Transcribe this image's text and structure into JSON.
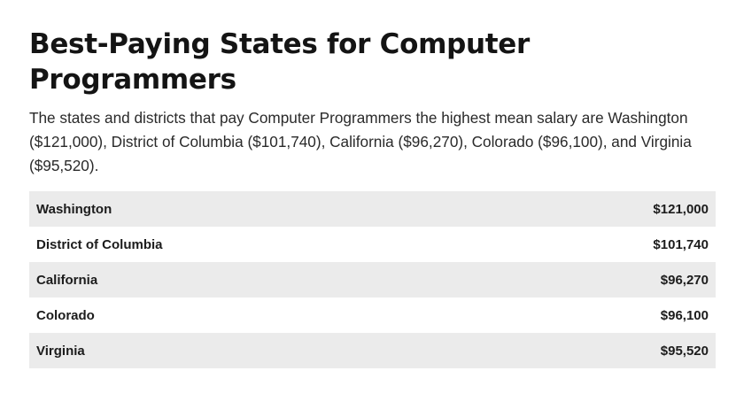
{
  "heading": "Best-Paying States for Computer Programmers",
  "intro": "The states and districts that pay Computer Programmers the highest mean salary are Washington ($121,000), District of Columbia ($101,740), California ($96,270), Colorado ($96,100), and Virginia ($95,520).",
  "table": {
    "rows": [
      {
        "state": "Washington",
        "salary": "$121,000"
      },
      {
        "state": "District of Columbia",
        "salary": "$101,740"
      },
      {
        "state": "California",
        "salary": "$96,270"
      },
      {
        "state": "Colorado",
        "salary": "$96,100"
      },
      {
        "state": "Virginia",
        "salary": "$95,520"
      }
    ]
  },
  "colors": {
    "stripe": "#ebebeb",
    "text": "#1a1a1a"
  }
}
